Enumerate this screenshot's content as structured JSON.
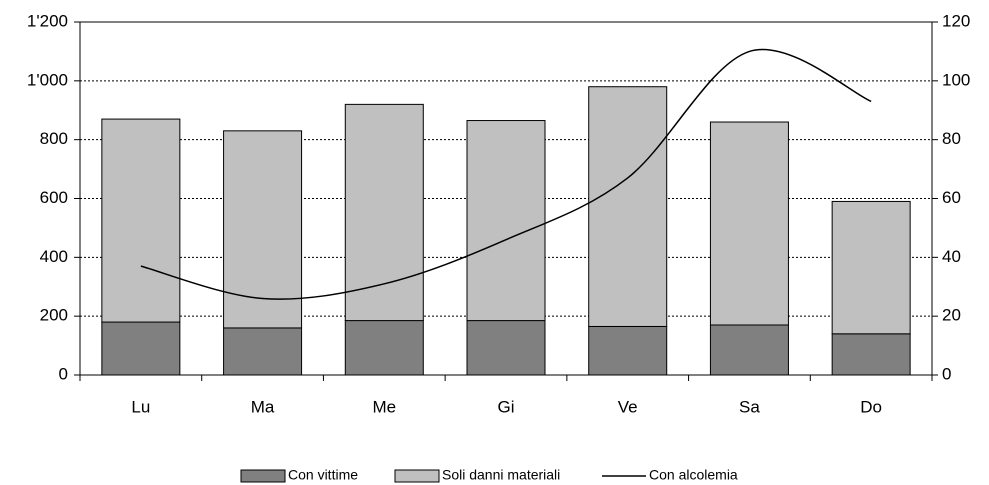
{
  "chart_data": {
    "type": "bar",
    "categories": [
      "Lu",
      "Ma",
      "Me",
      "Gi",
      "Ve",
      "Sa",
      "Do"
    ],
    "series": [
      {
        "name": "Con vittime",
        "color": "#808080",
        "values": [
          180,
          160,
          185,
          185,
          165,
          170,
          140
        ]
      },
      {
        "name": "Soli danni materiali",
        "color": "#c0c0c0",
        "values": [
          690,
          670,
          735,
          680,
          815,
          690,
          450
        ]
      },
      {
        "name": "Con alcolemia",
        "color": "#000000",
        "type": "line",
        "axis": "y2",
        "values": [
          37,
          26,
          31,
          46,
          67,
          110,
          93
        ]
      }
    ],
    "ylim": [
      0,
      1200
    ],
    "yticks": [
      0,
      200,
      400,
      600,
      800,
      {
        "value": 1000,
        "label": "1'000"
      },
      {
        "value": 1200,
        "label": "1'200"
      }
    ],
    "y2lim": [
      0,
      120
    ],
    "y2ticks": [
      0,
      20,
      40,
      60,
      80,
      100,
      120
    ],
    "stacked": true,
    "grid": true,
    "legend": "bottom"
  }
}
